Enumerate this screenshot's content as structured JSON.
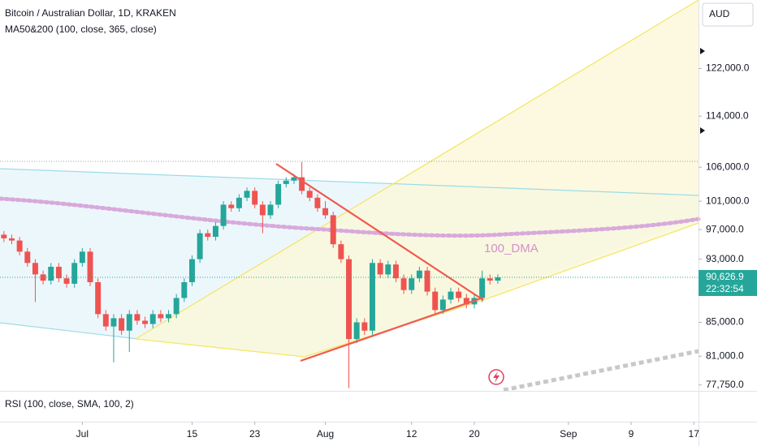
{
  "chart_data": {
    "type": "candlestick",
    "title": "Bitcoin / Australian Dollar, 1D, KRAKEN",
    "indicator": "MA50&200 (100, close, 365, close)",
    "lower_pane": "RSI (100, close, SMA, 100, 2)",
    "currency": "AUD",
    "annotation": "100_DMA",
    "last_price": {
      "value": 90626.9,
      "label": "90,626.9"
    },
    "countdown": "22:32:54",
    "log_scale": true,
    "up_color": "#26a69a",
    "down_color": "#ef5350",
    "x": [
      0,
      1,
      2,
      3,
      4,
      5,
      6,
      7,
      8,
      9,
      10,
      11,
      12,
      13,
      14,
      15,
      16,
      17,
      18,
      19,
      20,
      21,
      22,
      23,
      24,
      25,
      26,
      27,
      28,
      29,
      30,
      31,
      32,
      33,
      34,
      35,
      36,
      37,
      38,
      39,
      40,
      41,
      42,
      43,
      44,
      45,
      46,
      47,
      48,
      49,
      50,
      51,
      52,
      53,
      54,
      55,
      56,
      57,
      58,
      59,
      60,
      61,
      62,
      63
    ],
    "open": [
      96300,
      95800,
      95500,
      94000,
      92500,
      91000,
      90200,
      92000,
      90500,
      89800,
      92500,
      94000,
      90000,
      86000,
      84500,
      85500,
      84000,
      86000,
      85200,
      84800,
      86000,
      85500,
      86000,
      88000,
      90000,
      93000,
      96500,
      96000,
      97500,
      100500,
      100000,
      101500,
      102500,
      100500,
      99000,
      100500,
      103500,
      104000,
      104500,
      102500,
      101500,
      100000,
      99000,
      95000,
      93000,
      83000,
      85000,
      84000,
      92500,
      91000,
      92300,
      90500,
      89000,
      90500,
      91500,
      88800,
      86500,
      87800,
      88800,
      88000,
      87200,
      88000,
      90500,
      90200
    ],
    "high": [
      96800,
      96300,
      96000,
      94500,
      93000,
      91500,
      92500,
      92500,
      91000,
      93000,
      94500,
      94500,
      90500,
      86500,
      86000,
      86000,
      86500,
      86500,
      85700,
      86500,
      86500,
      86500,
      88500,
      90500,
      93500,
      97000,
      97000,
      98000,
      101000,
      101000,
      102000,
      103000,
      103000,
      101000,
      101000,
      104000,
      104500,
      105000,
      106800,
      103000,
      102000,
      101000,
      99500,
      95500,
      93500,
      85500,
      85500,
      93000,
      93000,
      92800,
      92800,
      91000,
      91000,
      92000,
      92000,
      89300,
      88300,
      89300,
      89300,
      88500,
      88500,
      91500,
      91000,
      91000
    ],
    "low": [
      95300,
      95000,
      93500,
      92000,
      87500,
      89700,
      89700,
      90000,
      89300,
      89300,
      92000,
      89500,
      85500,
      84000,
      80300,
      83500,
      81500,
      84700,
      84300,
      84300,
      85000,
      85000,
      85500,
      87500,
      89500,
      92500,
      95500,
      95500,
      97000,
      99500,
      99500,
      101000,
      100000,
      96500,
      98500,
      100000,
      103000,
      103500,
      102000,
      101000,
      99500,
      98500,
      94500,
      92500,
      77400,
      82500,
      83500,
      83500,
      90500,
      90500,
      90000,
      88500,
      88500,
      90000,
      88300,
      86000,
      86000,
      87300,
      87500,
      86700,
      86700,
      87500,
      89700,
      89800
    ],
    "close": [
      95800,
      95500,
      94000,
      92500,
      91000,
      90200,
      92000,
      90500,
      89800,
      92500,
      94000,
      90000,
      86000,
      84500,
      85500,
      84000,
      86000,
      85200,
      84800,
      86000,
      85500,
      86000,
      88000,
      90000,
      93000,
      96500,
      96000,
      97500,
      100500,
      100000,
      101500,
      102500,
      100500,
      99000,
      100500,
      103500,
      104000,
      104500,
      102500,
      101500,
      100000,
      99000,
      95000,
      93000,
      83000,
      85000,
      84000,
      92500,
      91000,
      92300,
      90500,
      89000,
      90500,
      91500,
      88800,
      86500,
      87800,
      88800,
      88000,
      87200,
      88000,
      90500,
      90200,
      90626.9
    ],
    "xlim": [
      -0.5,
      88.6
    ],
    "xticks": [
      {
        "value": 10,
        "label": "Jul"
      },
      {
        "value": 24,
        "label": "15"
      },
      {
        "value": 32,
        "label": "23"
      },
      {
        "value": 41,
        "label": "Aug"
      },
      {
        "value": 52,
        "label": "12"
      },
      {
        "value": 60,
        "label": "20"
      },
      {
        "value": 72,
        "label": "Sep"
      },
      {
        "value": 80,
        "label": "9"
      },
      {
        "value": 88,
        "label": "17"
      }
    ],
    "ylim": [
      77100,
      134500
    ],
    "yticks": [
      {
        "value": 77750,
        "label": "77,750.0"
      },
      {
        "value": 81000,
        "label": "81,000.0"
      },
      {
        "value": 85000,
        "label": "85,000.0"
      },
      {
        "value": 93000,
        "label": "93,000.0"
      },
      {
        "value": 97000,
        "label": "97,000.0"
      },
      {
        "value": 101000,
        "label": "101,000.0"
      },
      {
        "value": 106000,
        "label": "106,000.0"
      },
      {
        "value": 114000,
        "label": "114,000.0"
      },
      {
        "value": 122000,
        "label": "122,000.0"
      }
    ]
  }
}
